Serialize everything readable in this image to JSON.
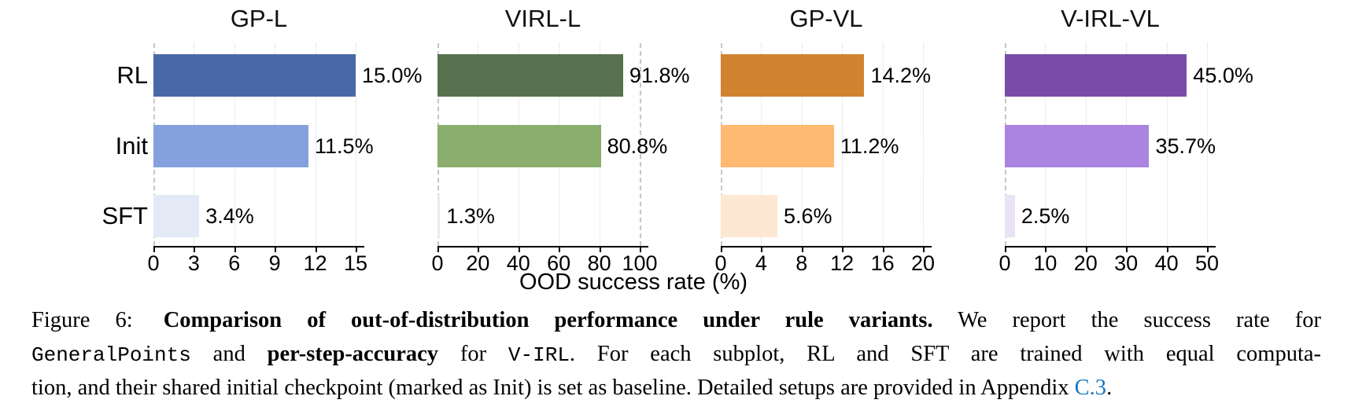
{
  "figure": {
    "xlabel": "OOD success rate (%)",
    "row_labels": [
      "RL",
      "Init",
      "SFT"
    ]
  },
  "chart_data": [
    {
      "type": "bar",
      "title": "GP-L",
      "orientation": "horizontal",
      "categories": [
        "RL",
        "Init",
        "SFT"
      ],
      "values": [
        15.0,
        11.5,
        3.4
      ],
      "value_labels": [
        "15.0%",
        "11.5%",
        "3.4%"
      ],
      "bar_colors": [
        "#4869a5",
        "#85a1dd",
        "#e3eaf6"
      ],
      "ticks": [
        0,
        3,
        6,
        9,
        12,
        15
      ],
      "xlim": [
        0,
        15.7
      ],
      "dashed_ref_lines": [
        0
      ],
      "grid": true
    },
    {
      "type": "bar",
      "title": "VIRL-L",
      "orientation": "horizontal",
      "categories": [
        "RL",
        "Init",
        "SFT"
      ],
      "values": [
        91.8,
        80.8,
        1.3
      ],
      "value_labels": [
        "91.8%",
        "80.8%",
        "1.3%"
      ],
      "bar_colors": [
        "#587150",
        "#8bad6d",
        "#e9ede3"
      ],
      "ticks": [
        0,
        20,
        40,
        60,
        80,
        100
      ],
      "xlim": [
        0,
        104.5
      ],
      "dashed_ref_lines": [
        0,
        100
      ],
      "grid": true
    },
    {
      "type": "bar",
      "title": "GP-VL",
      "orientation": "horizontal",
      "categories": [
        "RL",
        "Init",
        "SFT"
      ],
      "values": [
        14.2,
        11.2,
        5.6
      ],
      "value_labels": [
        "14.2%",
        "11.2%",
        "5.6%"
      ],
      "bar_colors": [
        "#d0842f",
        "#ffb970",
        "#fde8d3"
      ],
      "ticks": [
        0,
        4,
        8,
        12,
        16,
        20
      ],
      "xlim": [
        0,
        20.9
      ],
      "dashed_ref_lines": [
        0
      ],
      "grid": true
    },
    {
      "type": "bar",
      "title": "V-IRL-VL",
      "orientation": "horizontal",
      "categories": [
        "RL",
        "Init",
        "SFT"
      ],
      "values": [
        45.0,
        35.7,
        2.5
      ],
      "value_labels": [
        "45.0%",
        "35.7%",
        "2.5%"
      ],
      "bar_colors": [
        "#7a4ca8",
        "#aa84e0",
        "#eae2f5"
      ],
      "ticks": [
        0,
        10,
        20,
        30,
        40,
        50
      ],
      "xlim": [
        0,
        52.2
      ],
      "dashed_ref_lines": [
        0
      ],
      "grid": true
    }
  ],
  "caption": {
    "line1": {
      "fig_label": "Figure 6: ",
      "bold": "Comparison of out-of-distribution performance under rule variants.",
      "rest": " We report the success rate for"
    },
    "line2": {
      "mono1": "GeneralPoints",
      "t1": " and ",
      "bold": "per-step-accuracy",
      "t2": " for ",
      "mono2": "V-IRL",
      "t3": ". For each subplot, RL and SFT are trained with equal computa-"
    },
    "line3": {
      "t1": "tion, and their shared initial checkpoint (marked as Init) is set as baseline. Detailed setups are provided in Appendix ",
      "link": "C.3",
      "t2": "."
    }
  }
}
